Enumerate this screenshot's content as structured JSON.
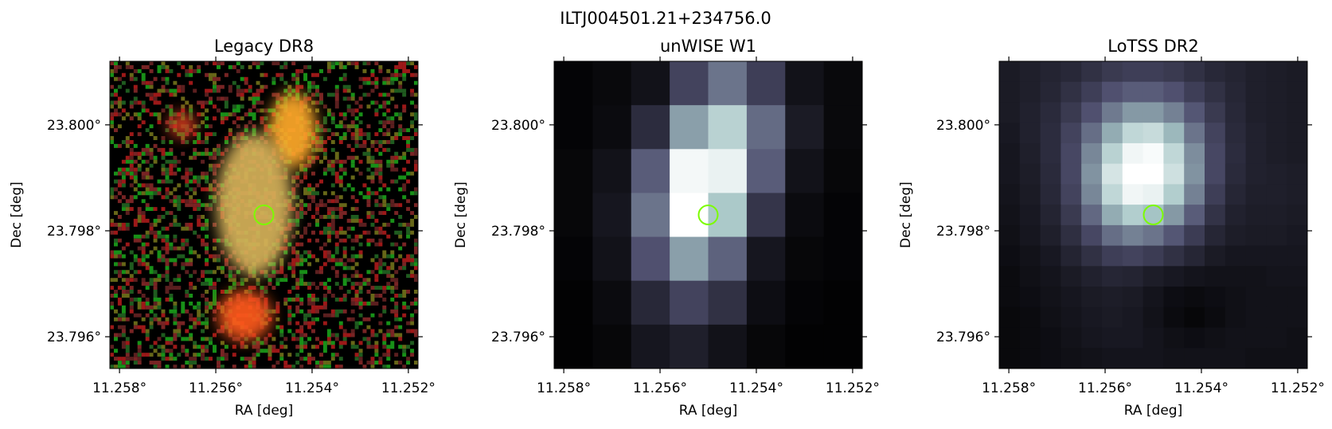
{
  "figure": {
    "suptitle": "ILTJ004501.21+234756.0",
    "marker_color": "#7CFC00"
  },
  "chart_data": [
    {
      "type": "heatmap",
      "title": "Legacy DR8",
      "xlabel": "RA [deg]",
      "ylabel": "Dec [deg]",
      "colormap": "rgb-composite",
      "xlim": [
        11.2582,
        11.2518
      ],
      "ylim": [
        23.7954,
        23.8012
      ],
      "xticks": [
        11.258,
        11.256,
        11.254,
        11.252
      ],
      "xtick_labels": [
        "11.258°",
        "11.256°",
        "11.254°",
        "11.252°"
      ],
      "yticks": [
        23.796,
        23.798,
        23.8
      ],
      "ytick_labels": [
        "23.796°",
        "23.798°",
        "23.800°"
      ],
      "marker": {
        "shape": "circle",
        "ra": 11.255,
        "dec": 23.7983
      },
      "sources": [
        {
          "ra": 11.2544,
          "dec": 23.7999,
          "color": "#ffaa2a",
          "label": ""
        },
        {
          "ra": 11.2552,
          "dec": 23.7985,
          "color": "#d6b25a",
          "label": ""
        },
        {
          "ra": 11.2554,
          "dec": 23.7964,
          "color": "#ff5a1e",
          "label": ""
        },
        {
          "ra": 11.2567,
          "dec": 23.8,
          "color": "#e04020",
          "label": ""
        }
      ]
    },
    {
      "type": "heatmap",
      "title": "unWISE W1",
      "xlabel": "RA [deg]",
      "ylabel": "Dec [deg]",
      "colormap": "bone",
      "xlim": [
        11.2582,
        11.2518
      ],
      "ylim": [
        23.7954,
        23.8012
      ],
      "xticks": [
        11.258,
        11.256,
        11.254,
        11.252
      ],
      "xtick_labels": [
        "11.258°",
        "11.256°",
        "11.254°",
        "11.252°"
      ],
      "yticks": [
        23.796,
        23.798,
        23.8
      ],
      "ytick_labels": [
        "23.796°",
        "23.798°",
        "23.800°"
      ],
      "marker": {
        "shape": "circle",
        "ra": 11.255,
        "dec": 23.7983
      },
      "grid": [
        [
          0.02,
          0.04,
          0.08,
          0.3,
          0.48,
          0.28,
          0.08,
          0.04
        ],
        [
          0.02,
          0.05,
          0.2,
          0.62,
          0.8,
          0.45,
          0.12,
          0.04
        ],
        [
          0.03,
          0.08,
          0.4,
          0.97,
          0.94,
          0.4,
          0.08,
          0.03
        ],
        [
          0.03,
          0.1,
          0.48,
          1.0,
          0.76,
          0.24,
          0.05,
          0.02
        ],
        [
          0.02,
          0.08,
          0.36,
          0.62,
          0.42,
          0.1,
          0.03,
          0.02
        ],
        [
          0.01,
          0.05,
          0.18,
          0.3,
          0.22,
          0.06,
          0.02,
          0.01
        ],
        [
          0.01,
          0.03,
          0.1,
          0.14,
          0.08,
          0.03,
          0.01,
          0.01
        ]
      ]
    },
    {
      "type": "heatmap",
      "title": "LoTSS DR2",
      "xlabel": "RA [deg]",
      "ylabel": "Dec [deg]",
      "colormap": "bone",
      "xlim": [
        11.2582,
        11.2518
      ],
      "ylim": [
        23.7954,
        23.8012
      ],
      "xticks": [
        11.258,
        11.256,
        11.254,
        11.252
      ],
      "xtick_labels": [
        "11.258°",
        "11.256°",
        "11.254°",
        "11.252°"
      ],
      "yticks": [
        23.796,
        23.798,
        23.8
      ],
      "ytick_labels": [
        "23.796°",
        "23.798°",
        "23.800°"
      ],
      "marker": {
        "shape": "circle",
        "ra": 11.255,
        "dec": 23.7983
      },
      "grid": [
        [
          0.12,
          0.14,
          0.16,
          0.18,
          0.22,
          0.26,
          0.28,
          0.28,
          0.26,
          0.22,
          0.18,
          0.16,
          0.14,
          0.13,
          0.12
        ],
        [
          0.12,
          0.14,
          0.17,
          0.22,
          0.28,
          0.36,
          0.4,
          0.4,
          0.36,
          0.28,
          0.22,
          0.17,
          0.14,
          0.13,
          0.12
        ],
        [
          0.12,
          0.15,
          0.19,
          0.26,
          0.36,
          0.5,
          0.6,
          0.6,
          0.52,
          0.38,
          0.26,
          0.18,
          0.14,
          0.13,
          0.12
        ],
        [
          0.11,
          0.15,
          0.2,
          0.3,
          0.46,
          0.66,
          0.82,
          0.84,
          0.7,
          0.48,
          0.3,
          0.19,
          0.15,
          0.13,
          0.12
        ],
        [
          0.1,
          0.14,
          0.2,
          0.32,
          0.54,
          0.8,
          0.96,
          0.98,
          0.82,
          0.56,
          0.32,
          0.2,
          0.15,
          0.13,
          0.12
        ],
        [
          0.1,
          0.13,
          0.19,
          0.32,
          0.58,
          0.88,
          1.0,
          1.0,
          0.86,
          0.58,
          0.32,
          0.19,
          0.15,
          0.14,
          0.13
        ],
        [
          0.09,
          0.12,
          0.18,
          0.3,
          0.54,
          0.82,
          0.96,
          0.94,
          0.78,
          0.52,
          0.28,
          0.17,
          0.14,
          0.14,
          0.13
        ],
        [
          0.08,
          0.11,
          0.16,
          0.26,
          0.44,
          0.66,
          0.78,
          0.74,
          0.6,
          0.4,
          0.23,
          0.15,
          0.13,
          0.13,
          0.12
        ],
        [
          0.07,
          0.1,
          0.14,
          0.21,
          0.32,
          0.46,
          0.52,
          0.48,
          0.38,
          0.27,
          0.17,
          0.13,
          0.12,
          0.12,
          0.11
        ],
        [
          0.06,
          0.08,
          0.11,
          0.16,
          0.22,
          0.28,
          0.3,
          0.27,
          0.22,
          0.17,
          0.12,
          0.1,
          0.1,
          0.1,
          0.1
        ],
        [
          0.05,
          0.07,
          0.09,
          0.12,
          0.15,
          0.17,
          0.16,
          0.13,
          0.11,
          0.09,
          0.08,
          0.08,
          0.08,
          0.09,
          0.09
        ],
        [
          0.05,
          0.06,
          0.08,
          0.1,
          0.12,
          0.13,
          0.12,
          0.09,
          0.06,
          0.05,
          0.06,
          0.07,
          0.08,
          0.08,
          0.08
        ],
        [
          0.04,
          0.05,
          0.07,
          0.09,
          0.11,
          0.12,
          0.11,
          0.08,
          0.05,
          0.03,
          0.05,
          0.07,
          0.08,
          0.08,
          0.08
        ],
        [
          0.04,
          0.05,
          0.06,
          0.08,
          0.1,
          0.11,
          0.11,
          0.09,
          0.07,
          0.06,
          0.07,
          0.08,
          0.08,
          0.08,
          0.07
        ],
        [
          0.04,
          0.05,
          0.06,
          0.07,
          0.08,
          0.09,
          0.09,
          0.09,
          0.08,
          0.08,
          0.08,
          0.08,
          0.07,
          0.07,
          0.07
        ]
      ]
    }
  ]
}
